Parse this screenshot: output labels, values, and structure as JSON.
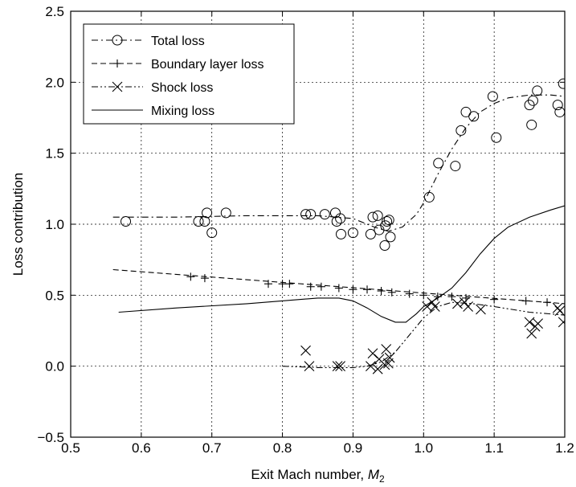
{
  "chart_data": {
    "type": "line",
    "title": "",
    "xlabel": "Exit Mach number, ",
    "xlabel_symbol": "M",
    "xlabel_subscript": "2",
    "ylabel": "Loss contribution",
    "xlim": [
      0.5,
      1.2
    ],
    "ylim": [
      -0.5,
      2.5
    ],
    "xticks": [
      "0.5",
      "0.6",
      "0.7",
      "0.8",
      "0.9",
      "1.0",
      "1.1",
      "1.2"
    ],
    "yticks": [
      "−0.5",
      "0.0",
      "0.5",
      "1.0",
      "1.5",
      "2.0",
      "2.5"
    ],
    "grid": true,
    "legend_position": "top-left",
    "series": [
      {
        "name": "Total loss",
        "marker": "circle",
        "line_style": "dash-dot",
        "curve": [
          [
            0.56,
            1.05
          ],
          [
            0.65,
            1.05
          ],
          [
            0.75,
            1.06
          ],
          [
            0.85,
            1.06
          ],
          [
            0.9,
            1.04
          ],
          [
            0.93,
            0.98
          ],
          [
            0.95,
            0.95
          ],
          [
            0.97,
            0.98
          ],
          [
            0.99,
            1.07
          ],
          [
            1.0,
            1.15
          ],
          [
            1.02,
            1.35
          ],
          [
            1.04,
            1.53
          ],
          [
            1.06,
            1.68
          ],
          [
            1.08,
            1.79
          ],
          [
            1.1,
            1.85
          ],
          [
            1.12,
            1.89
          ],
          [
            1.15,
            1.91
          ],
          [
            1.18,
            1.91
          ],
          [
            1.2,
            1.9
          ]
        ],
        "points": [
          [
            0.578,
            1.02
          ],
          [
            0.681,
            1.02
          ],
          [
            0.69,
            1.02
          ],
          [
            0.693,
            1.08
          ],
          [
            0.7,
            0.94
          ],
          [
            0.72,
            1.08
          ],
          [
            0.833,
            1.07
          ],
          [
            0.84,
            1.07
          ],
          [
            0.86,
            1.07
          ],
          [
            0.875,
            1.08
          ],
          [
            0.877,
            1.02
          ],
          [
            0.882,
            1.04
          ],
          [
            0.883,
            0.93
          ],
          [
            0.9,
            0.94
          ],
          [
            0.925,
            0.93
          ],
          [
            0.928,
            1.05
          ],
          [
            0.935,
            1.06
          ],
          [
            0.937,
            0.96
          ],
          [
            0.945,
            0.85
          ],
          [
            0.946,
            0.99
          ],
          [
            0.948,
            1.02
          ],
          [
            0.951,
            1.03
          ],
          [
            0.953,
            0.91
          ],
          [
            1.008,
            1.19
          ],
          [
            1.021,
            1.43
          ],
          [
            1.045,
            1.41
          ],
          [
            1.053,
            1.66
          ],
          [
            1.06,
            1.79
          ],
          [
            1.071,
            1.76
          ],
          [
            1.098,
            1.9
          ],
          [
            1.103,
            1.61
          ],
          [
            1.15,
            1.84
          ],
          [
            1.153,
            1.7
          ],
          [
            1.155,
            1.87
          ],
          [
            1.161,
            1.94
          ],
          [
            1.19,
            1.84
          ],
          [
            1.193,
            1.79
          ],
          [
            1.198,
            1.99
          ]
        ]
      },
      {
        "name": "Boundary layer loss",
        "marker": "plus",
        "line_style": "dashed",
        "curve": [
          [
            0.56,
            0.68
          ],
          [
            1.2,
            0.44
          ]
        ],
        "points": [
          [
            0.67,
            0.63
          ],
          [
            0.69,
            0.62
          ],
          [
            0.78,
            0.58
          ],
          [
            0.8,
            0.58
          ],
          [
            0.81,
            0.58
          ],
          [
            0.84,
            0.56
          ],
          [
            0.855,
            0.56
          ],
          [
            0.88,
            0.55
          ],
          [
            0.9,
            0.54
          ],
          [
            0.92,
            0.54
          ],
          [
            0.94,
            0.53
          ],
          [
            0.955,
            0.52
          ],
          [
            0.98,
            0.51
          ],
          [
            1.0,
            0.5
          ],
          [
            1.02,
            0.49
          ],
          [
            1.04,
            0.49
          ],
          [
            1.06,
            0.48
          ],
          [
            1.1,
            0.47
          ],
          [
            1.145,
            0.46
          ],
          [
            1.175,
            0.45
          ]
        ]
      },
      {
        "name": "Shock loss",
        "marker": "x",
        "line_style": "dash-dot-dot",
        "curve": [
          [
            0.8,
            0.0
          ],
          [
            0.85,
            -0.01
          ],
          [
            0.9,
            -0.01
          ],
          [
            0.92,
            0.0
          ],
          [
            0.94,
            0.03
          ],
          [
            0.96,
            0.1
          ],
          [
            0.98,
            0.22
          ],
          [
            1.0,
            0.34
          ],
          [
            1.02,
            0.42
          ],
          [
            1.04,
            0.45
          ],
          [
            1.07,
            0.44
          ],
          [
            1.1,
            0.42
          ],
          [
            1.15,
            0.38
          ],
          [
            1.2,
            0.36
          ]
        ],
        "points": [
          [
            0.833,
            0.11
          ],
          [
            0.838,
            0.0
          ],
          [
            0.878,
            0.0
          ],
          [
            0.882,
            0.0
          ],
          [
            0.925,
            0.0
          ],
          [
            0.928,
            0.09
          ],
          [
            0.935,
            -0.02
          ],
          [
            0.937,
            0.05
          ],
          [
            0.945,
            0.01
          ],
          [
            0.947,
            0.12
          ],
          [
            0.95,
            0.02
          ],
          [
            0.952,
            0.06
          ],
          [
            1.005,
            0.42
          ],
          [
            1.012,
            0.45
          ],
          [
            1.016,
            0.42
          ],
          [
            1.048,
            0.44
          ],
          [
            1.058,
            0.45
          ],
          [
            1.063,
            0.42
          ],
          [
            1.081,
            0.4
          ],
          [
            1.15,
            0.31
          ],
          [
            1.153,
            0.23
          ],
          [
            1.158,
            0.28
          ],
          [
            1.162,
            0.3
          ],
          [
            1.19,
            0.41
          ],
          [
            1.193,
            0.39
          ],
          [
            1.198,
            0.31
          ]
        ]
      },
      {
        "name": "Mixing loss",
        "marker": "none",
        "line_style": "solid",
        "curve": [
          [
            0.568,
            0.38
          ],
          [
            0.65,
            0.41
          ],
          [
            0.75,
            0.44
          ],
          [
            0.85,
            0.48
          ],
          [
            0.88,
            0.48
          ],
          [
            0.9,
            0.46
          ],
          [
            0.92,
            0.41
          ],
          [
            0.94,
            0.35
          ],
          [
            0.96,
            0.31
          ],
          [
            0.975,
            0.31
          ],
          [
            0.99,
            0.37
          ],
          [
            1.0,
            0.42
          ],
          [
            1.02,
            0.48
          ],
          [
            1.04,
            0.55
          ],
          [
            1.06,
            0.66
          ],
          [
            1.08,
            0.79
          ],
          [
            1.1,
            0.9
          ],
          [
            1.12,
            0.98
          ],
          [
            1.15,
            1.05
          ],
          [
            1.18,
            1.1
          ],
          [
            1.2,
            1.13
          ]
        ],
        "points": []
      }
    ]
  }
}
